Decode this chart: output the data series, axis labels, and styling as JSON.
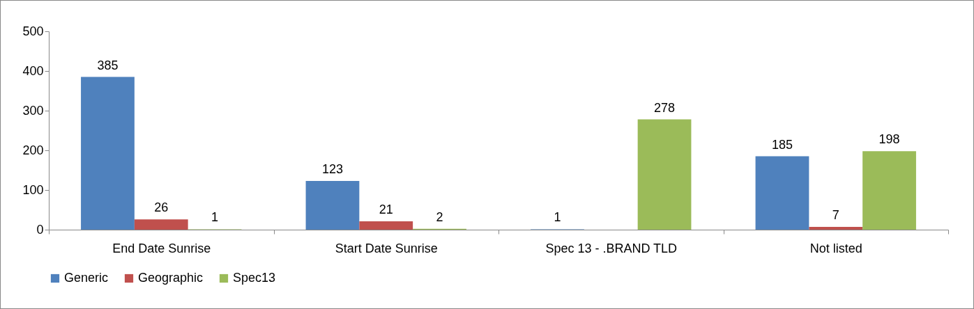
{
  "chart_data": {
    "type": "bar",
    "categories": [
      "End Date Sunrise",
      "Start Date Sunrise",
      "Spec 13 - .BRAND TLD",
      "Not listed"
    ],
    "series": [
      {
        "name": "Generic",
        "color": "#4f81bd",
        "values": [
          385,
          123,
          1,
          185
        ]
      },
      {
        "name": "Geographic",
        "color": "#c0504d",
        "values": [
          26,
          21,
          null,
          7
        ]
      },
      {
        "name": "Spec13",
        "color": "#9bbb59",
        "values": [
          1,
          2,
          278,
          198
        ]
      }
    ],
    "ylim": [
      0,
      500
    ],
    "yticks": [
      0,
      100,
      200,
      300,
      400,
      500
    ],
    "grid": false,
    "legend": "bottom",
    "data_labels": true
  }
}
